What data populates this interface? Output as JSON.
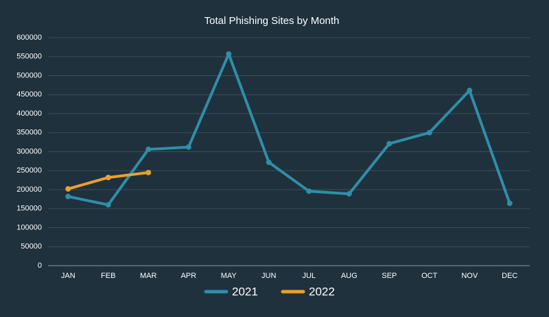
{
  "chart_data": {
    "type": "line",
    "title": "Total Phishing Sites by Month",
    "categories": [
      "JAN",
      "FEB",
      "MAR",
      "APR",
      "MAY",
      "JUN",
      "JUL",
      "AUG",
      "SEP",
      "OCT",
      "NOV",
      "DEC"
    ],
    "series": [
      {
        "name": "2021",
        "color": "#2f8ea8",
        "values": [
          182000,
          160000,
          306000,
          312000,
          557000,
          272000,
          196000,
          189000,
          321000,
          350000,
          461000,
          164000
        ]
      },
      {
        "name": "2022",
        "color": "#e9a12f",
        "values": [
          202000,
          232000,
          245000,
          null,
          null,
          null,
          null,
          null,
          null,
          null,
          null,
          null
        ]
      }
    ],
    "ylim": [
      0,
      600000
    ],
    "yticks": [
      0,
      50000,
      100000,
      150000,
      200000,
      250000,
      300000,
      350000,
      400000,
      450000,
      500000,
      550000,
      600000
    ],
    "grid": true,
    "legend": "bottom"
  }
}
